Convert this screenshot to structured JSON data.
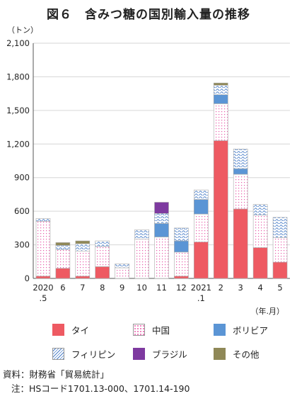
{
  "title": "図６　含みつ糖の国別輸入量の推移",
  "source": "資料：財務省「貿易統計」",
  "note": "注：HSコード1701.13-000、1701.14-190",
  "chart_data": {
    "type": "bar",
    "stacked": true,
    "ylabel": "（トン）",
    "xlabel": "（年.月）",
    "ylim": [
      0,
      2100
    ],
    "yticks": [
      0,
      300,
      600,
      900,
      1200,
      1500,
      1800,
      2100
    ],
    "ytick_labels": [
      "0",
      "300",
      "600",
      "900",
      "1,200",
      "1,500",
      "1,800",
      "2,100"
    ],
    "categories": [
      "2020\n.5",
      "6",
      "7",
      "8",
      "9",
      "10",
      "11",
      "12",
      "2021\n.1",
      "2",
      "3",
      "4",
      "5"
    ],
    "legend_placement": "bottom",
    "series": [
      {
        "name": "タイ",
        "color": "#ee5a62",
        "pattern": "solid",
        "values": [
          20,
          90,
          20,
          105,
          0,
          0,
          0,
          20,
          325,
          1230,
          620,
          275,
          145
        ]
      },
      {
        "name": "中国",
        "color": "#e85aa8",
        "pattern": "dots",
        "values": [
          490,
          165,
          225,
          180,
          95,
          350,
          370,
          215,
          250,
          330,
          310,
          290,
          220
        ]
      },
      {
        "name": "ボリビア",
        "color": "#5b95d5",
        "pattern": "solid",
        "values": [
          0,
          0,
          0,
          0,
          0,
          0,
          120,
          100,
          130,
          80,
          50,
          0,
          0
        ]
      },
      {
        "name": "フィリピン",
        "color": "#4a7ec8",
        "pattern": "waves",
        "values": [
          25,
          40,
          65,
          50,
          35,
          85,
          90,
          115,
          85,
          85,
          175,
          95,
          180
        ]
      },
      {
        "name": "ブラジル",
        "color": "#7e3aa0",
        "pattern": "solid",
        "values": [
          0,
          0,
          0,
          0,
          0,
          0,
          100,
          0,
          0,
          0,
          0,
          0,
          0
        ]
      },
      {
        "name": "その他",
        "color": "#8f8857",
        "pattern": "solid",
        "values": [
          0,
          25,
          25,
          0,
          0,
          0,
          0,
          0,
          0,
          20,
          0,
          0,
          0
        ]
      }
    ]
  }
}
